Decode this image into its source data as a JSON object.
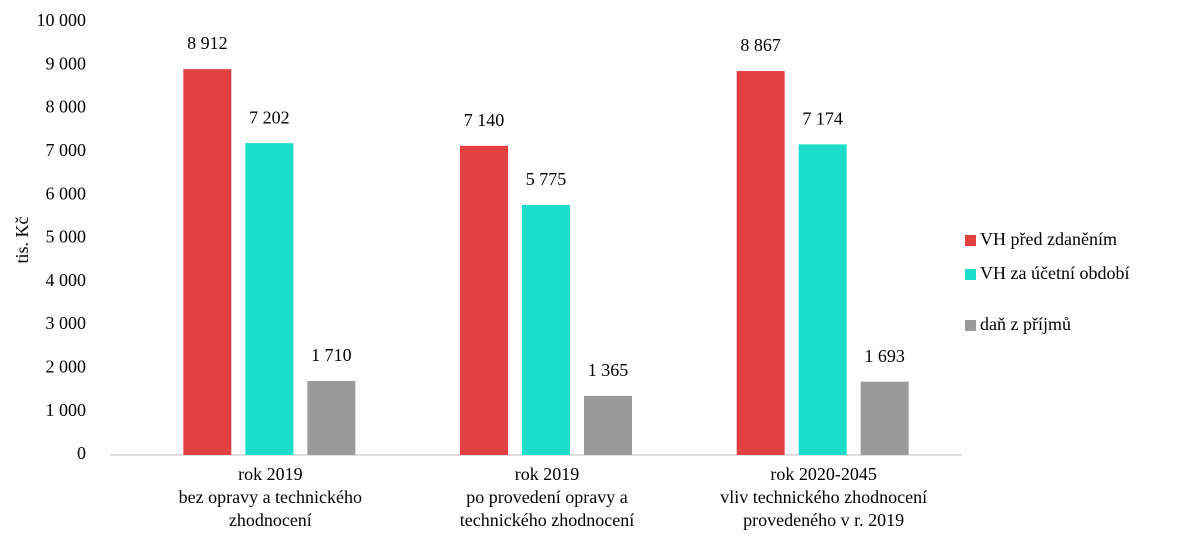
{
  "chart_data": {
    "type": "bar",
    "y_label": "tis. Kč",
    "categories": [
      [
        "rok 2019",
        "bez opravy a  technického",
        "zhodnocení"
      ],
      [
        "rok 2019",
        "po provedení opravy a",
        "technického zhodnocení"
      ],
      [
        "rok 2020-2045",
        "vliv technického zhodnocení",
        "provedeného v r. 2019"
      ]
    ],
    "series": [
      {
        "name": "VH před zdaněním",
        "color": "#e04040",
        "values": [
          8912,
          7140,
          8867
        ],
        "value_labels": [
          "8 912",
          "7 140",
          "8 867"
        ]
      },
      {
        "name": "VH za účetní období",
        "color": "#1cddc9",
        "values": [
          7202,
          5775,
          7174
        ],
        "value_labels": [
          "7 202",
          "5 775",
          "7 174"
        ]
      },
      {
        "name": "daň z příjmů",
        "color": "#999999",
        "values": [
          1710,
          1365,
          1693
        ],
        "value_labels": [
          "1 710",
          "1 365",
          "1 693"
        ]
      }
    ],
    "ylim": [
      0,
      10000
    ],
    "yticks": [
      0,
      {
        "value": 1000,
        "label": "1 000"
      },
      {
        "value": 2000,
        "label": "2 000"
      },
      {
        "value": 3000,
        "label": "3 000"
      },
      {
        "value": 4000,
        "label": "4 000"
      },
      {
        "value": 5000,
        "label": "5 000"
      },
      {
        "value": 6000,
        "label": "6 000"
      },
      {
        "value": 7000,
        "label": "7 000"
      },
      {
        "value": 8000,
        "label": "8 000"
      },
      {
        "value": 9000,
        "label": "9 000"
      },
      {
        "value": 10000,
        "label": "10 000"
      }
    ],
    "grid": false,
    "legend": "right"
  }
}
